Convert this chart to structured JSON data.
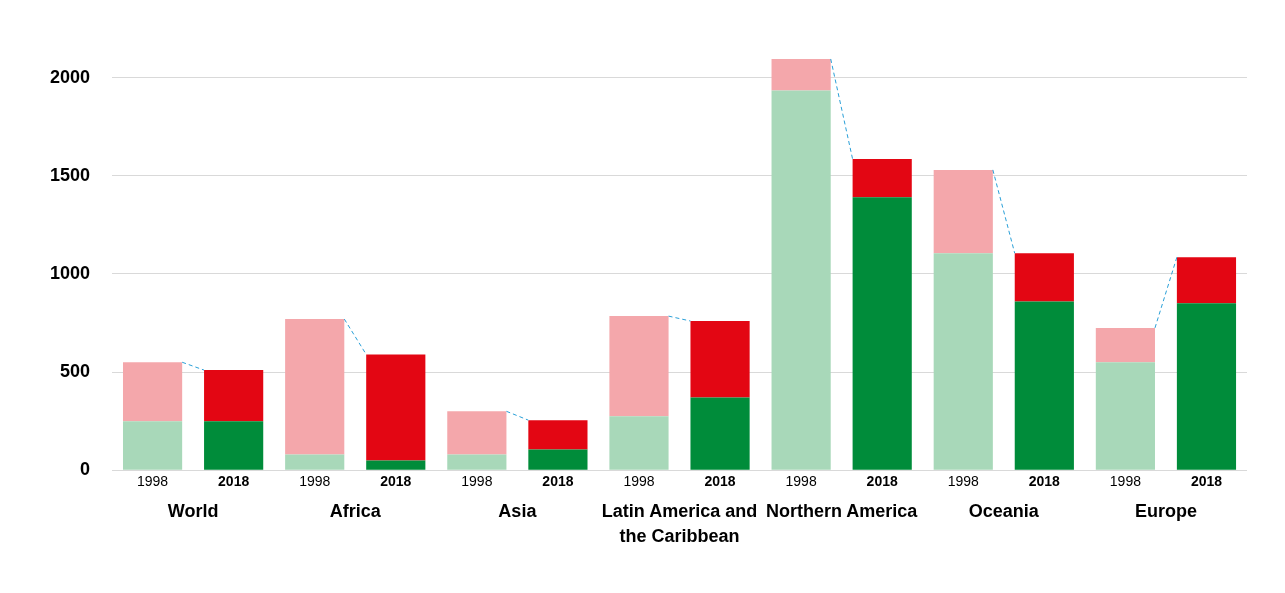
{
  "chart_data": {
    "type": "bar",
    "stacked": true,
    "categories": [
      "1998",
      "2018",
      "1998",
      "2018",
      "1998",
      "2018",
      "1998",
      "2018",
      "1998",
      "2018",
      "1998",
      "2018",
      "1998",
      "2018"
    ],
    "series": [
      {
        "colors": [
          "#a8d8b9",
          "#008c3a",
          "#a8d8b9",
          "#008c3a",
          "#a8d8b9",
          "#008c3a",
          "#a8d8b9",
          "#008c3a",
          "#a8d8b9",
          "#008c3a",
          "#a8d8b9",
          "#008c3a",
          "#a8d8b9",
          "#008c3a"
        ],
        "values": [
          250,
          250,
          80,
          50,
          80,
          105,
          275,
          370,
          1935,
          1390,
          1105,
          860,
          550,
          850
        ]
      },
      {
        "colors": [
          "#f4a7ab",
          "#e30613",
          "#f4a7ab",
          "#e30613",
          "#f4a7ab",
          "#e30613",
          "#f4a7ab",
          "#e30613",
          "#f4a7ab",
          "#e30613",
          "#f4a7ab",
          "#e30613",
          "#f4a7ab",
          "#e30613"
        ],
        "values": [
          300,
          260,
          690,
          540,
          220,
          150,
          510,
          390,
          160,
          195,
          425,
          245,
          175,
          235
        ]
      }
    ],
    "annotations": [
      "World",
      "Africa",
      "Asia",
      "Latin America and the Caribbean",
      "Northern America",
      "Oceania",
      "Europe"
    ],
    "ylim": [
      0,
      2100
    ],
    "yticks": [
      0,
      500,
      1000,
      1500,
      2000
    ],
    "grid": "y",
    "legend": false
  }
}
